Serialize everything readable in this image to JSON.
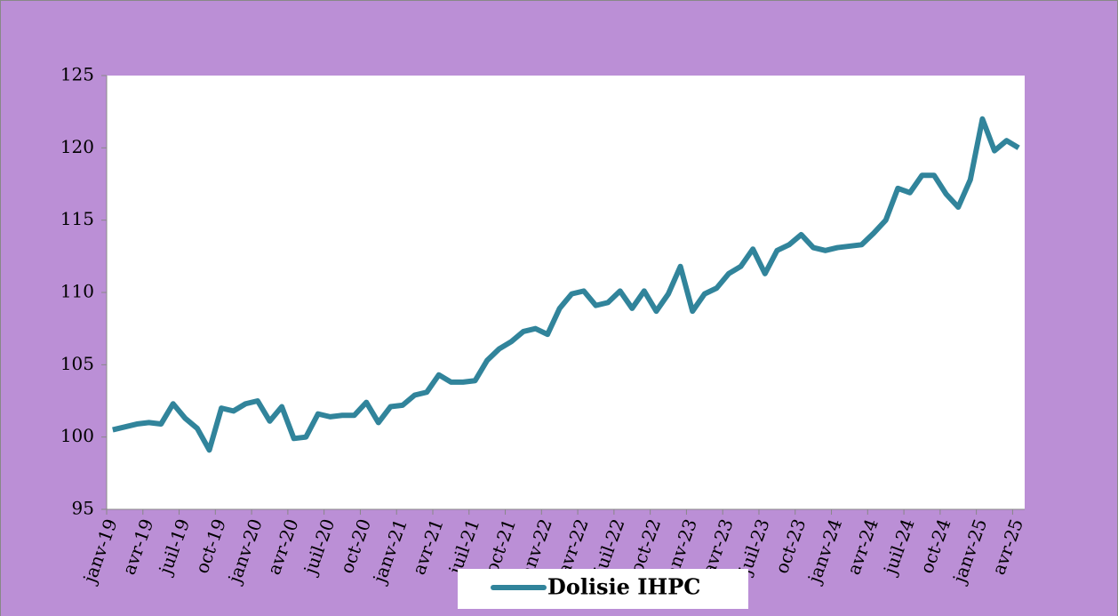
{
  "chart_data": {
    "type": "line",
    "categories": [
      "janv-19",
      null,
      null,
      "avr-19",
      null,
      null,
      "juil-19",
      null,
      null,
      "oct-19",
      null,
      null,
      "janv-20",
      null,
      null,
      "avr-20",
      null,
      null,
      "juil-20",
      null,
      null,
      "oct-20",
      null,
      null,
      "janv-21",
      null,
      null,
      "avr-21",
      null,
      null,
      "juil-21",
      null,
      null,
      "oct-21",
      null,
      null,
      "janv-22",
      null,
      null,
      "avr-22",
      null,
      null,
      "juil-22",
      null,
      null,
      "oct-22",
      null,
      null,
      "janv-23",
      null,
      null,
      "avr-23",
      null,
      null,
      "juil-23",
      null,
      null,
      "oct-23",
      null,
      null,
      "janv-24",
      null,
      null,
      "avr-24",
      null,
      null,
      "juil-24",
      null,
      null,
      "oct-24",
      null,
      null,
      "janv-25",
      null,
      null,
      "avr-25"
    ],
    "series": [
      {
        "name": "Dolisie IHPC",
        "color": "#31849b",
        "values": [
          100.5,
          100.7,
          100.9,
          101.0,
          100.9,
          102.3,
          101.3,
          100.6,
          99.1,
          102.0,
          101.8,
          102.3,
          102.5,
          101.1,
          102.1,
          99.9,
          100.0,
          101.6,
          101.4,
          101.5,
          101.5,
          102.4,
          101.0,
          102.1,
          102.2,
          102.9,
          103.1,
          104.3,
          103.8,
          103.8,
          103.9,
          105.3,
          106.1,
          106.6,
          107.3,
          107.5,
          107.1,
          108.9,
          109.9,
          110.1,
          109.1,
          109.3,
          110.1,
          108.9,
          110.1,
          108.7,
          109.9,
          111.8,
          108.7,
          109.9,
          110.3,
          111.3,
          111.8,
          113.0,
          111.3,
          112.9,
          113.3,
          114.0,
          113.1,
          112.9,
          113.1,
          113.2,
          113.3,
          114.1,
          115.0,
          117.2,
          116.9,
          118.1,
          118.1,
          116.8,
          115.9,
          117.8,
          122.0,
          119.8,
          120.5,
          120.0
        ]
      }
    ],
    "ylim": [
      95,
      125
    ],
    "yticks": [
      95,
      100,
      105,
      110,
      115,
      120,
      125
    ],
    "grid": false,
    "legend": "bottom"
  }
}
